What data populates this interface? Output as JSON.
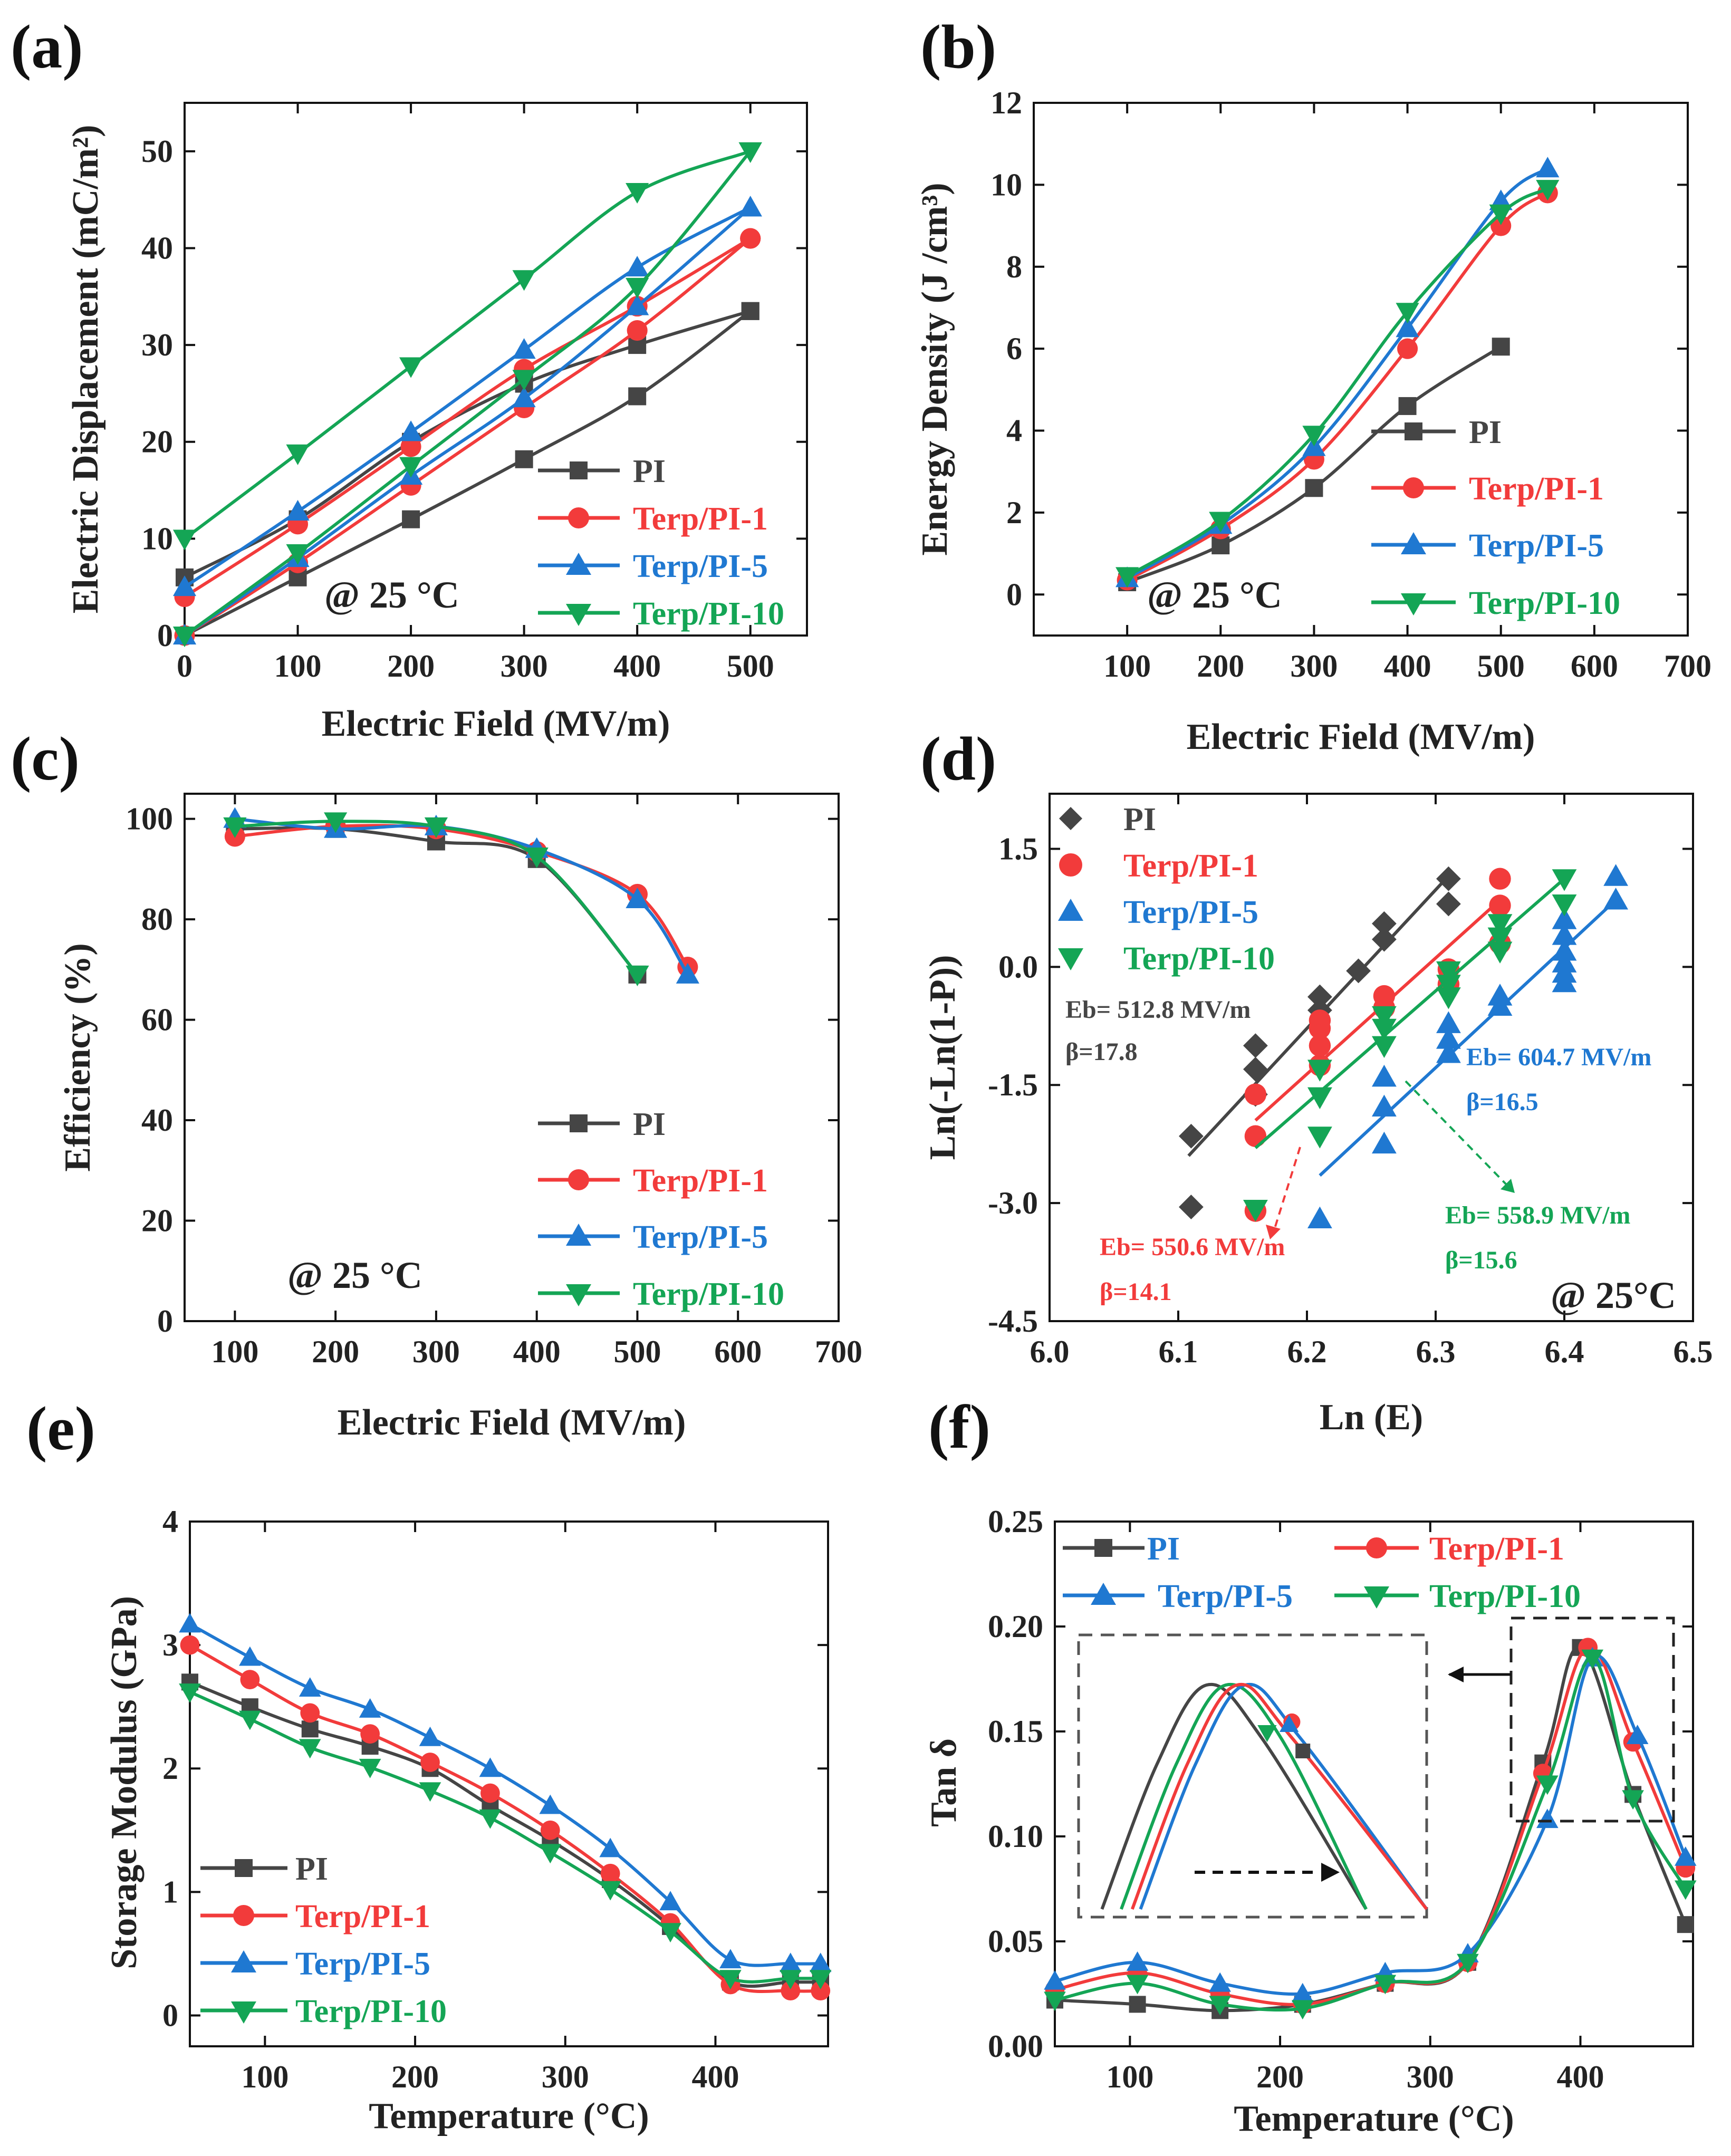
{
  "colors": {
    "PI": "#454545",
    "Terp/PI-1": "#f23b3b",
    "Terp/PI-5": "#1f78d1",
    "Terp/PI-10": "#14a555"
  },
  "markers": {
    "PI": "square",
    "Terp/PI-1": "circle",
    "Terp/PI-5": "triangle-up",
    "Terp/PI-10": "triangle-down"
  },
  "chart_data": [
    {
      "id": "a",
      "panel_label": "(a)",
      "type": "line",
      "xlabel": "Electric Field (MV/m)",
      "ylabel": "Electric Displacement (mC/m²)",
      "xlim": [
        0,
        550
      ],
      "ylim": [
        0,
        55
      ],
      "xticks": [
        0,
        100,
        200,
        300,
        400,
        500
      ],
      "yticks": [
        0,
        10,
        20,
        30,
        40,
        50
      ],
      "annotation": "@ 25 °C",
      "series": [
        {
          "name": "PI",
          "charge": [
            [
              0,
              6
            ],
            [
              100,
              12
            ],
            [
              200,
              20
            ],
            [
              300,
              26
            ],
            [
              400,
              30
            ],
            [
              500,
              33.5
            ]
          ],
          "discharge": [
            [
              500,
              33.5
            ],
            [
              400,
              24.7
            ],
            [
              300,
              18.2
            ],
            [
              200,
              12
            ],
            [
              100,
              6
            ],
            [
              0,
              0
            ]
          ]
        },
        {
          "name": "Terp/PI-1",
          "charge": [
            [
              0,
              4
            ],
            [
              100,
              11.5
            ],
            [
              200,
              19.5
            ],
            [
              300,
              27.5
            ],
            [
              400,
              34
            ],
            [
              500,
              41
            ]
          ],
          "discharge": [
            [
              500,
              41
            ],
            [
              400,
              31.5
            ],
            [
              300,
              23.5
            ],
            [
              200,
              15.5
            ],
            [
              100,
              7.5
            ],
            [
              0,
              0
            ]
          ]
        },
        {
          "name": "Terp/PI-5",
          "charge": [
            [
              0,
              5
            ],
            [
              100,
              12.8
            ],
            [
              200,
              21
            ],
            [
              300,
              29.5
            ],
            [
              400,
              38
            ],
            [
              500,
              44.2
            ]
          ],
          "discharge": [
            [
              500,
              44.2
            ],
            [
              400,
              34
            ],
            [
              300,
              24.5
            ],
            [
              200,
              16.5
            ],
            [
              100,
              8
            ],
            [
              0,
              0
            ]
          ]
        },
        {
          "name": "Terp/PI-10",
          "charge": [
            [
              0,
              10
            ],
            [
              100,
              18.8
            ],
            [
              200,
              27.8
            ],
            [
              300,
              36.8
            ],
            [
              400,
              45.8
            ],
            [
              500,
              50
            ]
          ],
          "discharge": [
            [
              500,
              50
            ],
            [
              400,
              36
            ],
            [
              300,
              26.5
            ],
            [
              200,
              17.5
            ],
            [
              100,
              8.5
            ],
            [
              0,
              0
            ]
          ]
        }
      ]
    },
    {
      "id": "b",
      "panel_label": "(b)",
      "type": "line",
      "xlabel": "Electric Field (MV/m)",
      "ylabel": "Energy Density (J /cm³)",
      "xlim": [
        0,
        700
      ],
      "ylim": [
        -1,
        12
      ],
      "xticks": [
        100,
        200,
        300,
        400,
        500,
        600,
        700
      ],
      "yticks": [
        0,
        2,
        4,
        6,
        8,
        10,
        12
      ],
      "annotation": "@ 25 °C",
      "series": [
        {
          "name": "PI",
          "x": [
            100,
            200,
            300,
            400,
            500
          ],
          "y": [
            0.3,
            1.2,
            2.6,
            4.6,
            6.05
          ]
        },
        {
          "name": "Terp/PI-1",
          "x": [
            100,
            200,
            300,
            400,
            500,
            550
          ],
          "y": [
            0.35,
            1.6,
            3.3,
            6.0,
            9.0,
            9.8
          ]
        },
        {
          "name": "Terp/PI-5",
          "x": [
            100,
            200,
            300,
            400,
            500,
            550
          ],
          "y": [
            0.4,
            1.7,
            3.6,
            6.5,
            9.6,
            10.4
          ]
        },
        {
          "name": "Terp/PI-10",
          "x": [
            100,
            200,
            300,
            400,
            500,
            550
          ],
          "y": [
            0.45,
            1.8,
            3.9,
            6.9,
            9.3,
            9.9
          ]
        }
      ]
    },
    {
      "id": "c",
      "panel_label": "(c)",
      "type": "line",
      "xlabel": "Electric Field (MV/m)",
      "ylabel": "Efficiency (%)",
      "xlim": [
        50,
        700
      ],
      "ylim": [
        0,
        105
      ],
      "xticks": [
        100,
        200,
        300,
        400,
        500,
        600,
        700
      ],
      "yticks": [
        0,
        20,
        40,
        60,
        80,
        100
      ],
      "annotation": "@ 25 °C",
      "series": [
        {
          "name": "PI",
          "x": [
            100,
            200,
            300,
            400,
            500
          ],
          "y": [
            98,
            98,
            95.5,
            92,
            69
          ]
        },
        {
          "name": "Terp/PI-1",
          "x": [
            100,
            200,
            300,
            400,
            500,
            550
          ],
          "y": [
            96.5,
            98.5,
            98,
            93.5,
            85,
            70.5
          ]
        },
        {
          "name": "Terp/PI-5",
          "x": [
            100,
            200,
            300,
            400,
            500,
            550
          ],
          "y": [
            100,
            98,
            98.5,
            94,
            84,
            69
          ]
        },
        {
          "name": "Terp/PI-10",
          "x": [
            100,
            200,
            300,
            400,
            500
          ],
          "y": [
            98.5,
            99.5,
            98.5,
            92.5,
            69
          ]
        }
      ]
    },
    {
      "id": "d",
      "panel_label": "(d)",
      "type": "scatter",
      "xlabel": "Ln (E)",
      "ylabel": "Ln(-Ln(1-P))",
      "xlim": [
        6.0,
        6.5
      ],
      "ylim": [
        -4.5,
        2.2
      ],
      "xticks": [
        6.0,
        6.1,
        6.2,
        6.3,
        6.4,
        6.5
      ],
      "yticks": [
        -4.5,
        -3.0,
        -1.5,
        0.0,
        1.5
      ],
      "annotation": "@ 25°C",
      "series": [
        {
          "name": "PI",
          "x": [
            6.11,
            6.11,
            6.16,
            6.16,
            6.16,
            6.21,
            6.21,
            6.24,
            6.26,
            6.26,
            6.31,
            6.31
          ],
          "y": [
            -3.05,
            -2.15,
            -1.62,
            -1.3,
            -1.0,
            -0.55,
            -0.38,
            -0.05,
            0.35,
            0.55,
            0.8,
            1.12
          ],
          "fit": [
            [
              6.108,
              -2.4
            ],
            [
              6.308,
              1.12
            ]
          ],
          "eb": "Eb= 512.8 MV/m",
          "beta": "β=17.8"
        },
        {
          "name": "Terp/PI-1",
          "x": [
            6.16,
            6.16,
            6.16,
            6.21,
            6.21,
            6.21,
            6.21,
            6.26,
            6.26,
            6.31,
            6.31,
            6.35,
            6.35,
            6.35
          ],
          "y": [
            -3.1,
            -2.15,
            -1.62,
            -1.25,
            -1.0,
            -0.78,
            -0.68,
            -0.52,
            -0.37,
            -0.22,
            -0.03,
            0.3,
            0.78,
            1.12
          ],
          "fit": [
            [
              6.16,
              -1.95
            ],
            [
              6.35,
              0.85
            ]
          ],
          "eb": "Eb= 550.6 MV/m",
          "beta": "β=14.1"
        },
        {
          "name": "Terp/PI-5",
          "x": [
            6.21,
            6.26,
            6.26,
            6.26,
            6.31,
            6.31,
            6.31,
            6.35,
            6.35,
            6.4,
            6.4,
            6.4,
            6.4,
            6.4,
            6.4,
            6.44,
            6.44
          ],
          "y": [
            -3.2,
            -2.25,
            -1.78,
            -1.4,
            -1.1,
            -0.92,
            -0.72,
            -0.5,
            -0.37,
            -0.2,
            -0.08,
            0.05,
            0.2,
            0.4,
            0.6,
            0.85,
            1.15
          ],
          "fit": [
            [
              6.21,
              -2.65
            ],
            [
              6.44,
              0.85
            ]
          ],
          "eb": "Eb= 604.7 MV/m",
          "beta": "β=16.5"
        },
        {
          "name": "Terp/PI-10",
          "x": [
            6.16,
            6.21,
            6.21,
            6.21,
            6.26,
            6.26,
            6.26,
            6.31,
            6.31,
            6.31,
            6.35,
            6.35,
            6.35,
            6.4,
            6.4
          ],
          "y": [
            -3.08,
            -2.15,
            -1.65,
            -1.3,
            -1.0,
            -0.78,
            -0.62,
            -0.38,
            -0.22,
            -0.05,
            0.2,
            0.38,
            0.55,
            0.8,
            1.12
          ],
          "fit": [
            [
              6.16,
              -2.3
            ],
            [
              6.4,
              1.12
            ]
          ],
          "eb": "Eb= 558.9 MV/m",
          "beta": "β=15.6"
        }
      ]
    },
    {
      "id": "e",
      "panel_label": "(e)",
      "type": "line",
      "xlabel": "Temperature (°C)",
      "ylabel": "Storage Modulus (GPa)",
      "xlim": [
        50,
        475
      ],
      "ylim": [
        -0.25,
        4
      ],
      "xticks": [
        100,
        200,
        300,
        400
      ],
      "yticks": [
        0,
        1,
        2,
        3,
        4
      ],
      "x": [
        50,
        90,
        130,
        170,
        210,
        250,
        290,
        330,
        370,
        410,
        450,
        470
      ],
      "series": [
        {
          "name": "PI",
          "y": [
            2.7,
            2.5,
            2.32,
            2.18,
            2.0,
            1.7,
            1.42,
            1.1,
            0.72,
            0.27,
            0.27,
            0.27
          ]
        },
        {
          "name": "Terp/PI-1",
          "y": [
            3.0,
            2.72,
            2.45,
            2.28,
            2.05,
            1.8,
            1.5,
            1.15,
            0.75,
            0.25,
            0.2,
            0.2
          ]
        },
        {
          "name": "Terp/PI-5",
          "y": [
            3.17,
            2.9,
            2.65,
            2.48,
            2.25,
            2.0,
            1.7,
            1.35,
            0.92,
            0.45,
            0.42,
            0.42
          ]
        },
        {
          "name": "Terp/PI-10",
          "y": [
            2.62,
            2.4,
            2.17,
            2.01,
            1.82,
            1.6,
            1.32,
            1.02,
            0.68,
            0.3,
            0.3,
            0.3
          ]
        }
      ]
    },
    {
      "id": "f",
      "panel_label": "(f)",
      "type": "line",
      "xlabel": "Temperature (°C)",
      "ylabel": "Tan δ",
      "xlim": [
        50,
        475
      ],
      "ylim": [
        0,
        0.25
      ],
      "xticks": [
        100,
        200,
        300,
        400
      ],
      "yticks": [
        0.0,
        0.05,
        0.1,
        0.15,
        0.2,
        0.25
      ],
      "tick_labels": [
        "0.00",
        "0.05",
        "0.10",
        "0.15",
        "0.20",
        "0.25"
      ],
      "series": [
        {
          "name": "PI",
          "x": [
            50,
            105,
            160,
            215,
            270,
            325,
            375,
            400,
            435,
            470
          ],
          "y": [
            0.022,
            0.02,
            0.017,
            0.02,
            0.03,
            0.04,
            0.135,
            0.19,
            0.12,
            0.058
          ]
        },
        {
          "name": "Terp/PI-1",
          "x": [
            50,
            105,
            160,
            215,
            270,
            325,
            375,
            405,
            435,
            470
          ],
          "y": [
            0.027,
            0.035,
            0.025,
            0.02,
            0.03,
            0.04,
            0.13,
            0.19,
            0.145,
            0.085
          ]
        },
        {
          "name": "Terp/PI-5",
          "x": [
            50,
            105,
            160,
            215,
            270,
            325,
            378,
            408,
            438,
            470
          ],
          "y": [
            0.031,
            0.04,
            0.03,
            0.025,
            0.035,
            0.044,
            0.108,
            0.185,
            0.148,
            0.09
          ]
        },
        {
          "name": "Terp/PI-10",
          "x": [
            50,
            105,
            160,
            215,
            270,
            325,
            378,
            408,
            435,
            470
          ],
          "y": [
            0.022,
            0.03,
            0.02,
            0.018,
            0.03,
            0.04,
            0.125,
            0.185,
            0.118,
            0.075
          ]
        }
      ]
    }
  ]
}
